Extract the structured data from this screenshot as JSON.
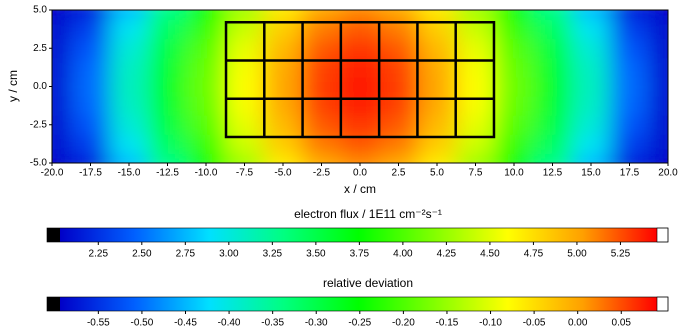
{
  "chart_data": {
    "type": "contour",
    "xlabel": "x / cm",
    "ylabel": "y / cm",
    "x": [
      -20,
      -17.5,
      -15,
      -12.5,
      -10,
      -7.5,
      -5,
      -2.5,
      0,
      2.5,
      5,
      7.5,
      10,
      12.5,
      15,
      17.5,
      20
    ],
    "y": [
      -5,
      -3.75,
      -2.5,
      -1.25,
      0,
      1.25,
      2.5,
      3.75,
      5
    ],
    "z": [
      [
        2.05,
        2.2,
        2.8,
        3.3,
        3.8,
        4.3,
        4.7,
        5.0,
        5.1,
        5.0,
        4.7,
        4.3,
        3.8,
        3.3,
        2.8,
        2.2,
        2.05
      ],
      [
        2.07,
        2.33,
        2.93,
        3.43,
        3.93,
        4.43,
        4.83,
        5.13,
        5.23,
        5.13,
        4.83,
        4.43,
        3.93,
        3.43,
        2.93,
        2.33,
        2.07
      ],
      [
        2.08,
        2.42,
        3.02,
        3.52,
        4.02,
        4.52,
        4.92,
        5.22,
        5.32,
        5.22,
        4.92,
        4.52,
        4.02,
        3.52,
        3.02,
        2.42,
        2.08
      ],
      [
        2.09,
        2.48,
        3.08,
        3.58,
        4.08,
        4.58,
        4.98,
        5.28,
        5.38,
        5.28,
        4.98,
        4.58,
        4.08,
        3.58,
        3.08,
        2.48,
        2.09
      ],
      [
        2.1,
        2.5,
        3.1,
        3.6,
        4.1,
        4.6,
        5.0,
        5.3,
        5.4,
        5.3,
        5.0,
        4.6,
        4.1,
        3.6,
        3.1,
        2.5,
        2.1
      ],
      [
        2.09,
        2.48,
        3.08,
        3.58,
        4.08,
        4.58,
        4.98,
        5.28,
        5.38,
        5.28,
        4.98,
        4.58,
        4.08,
        3.58,
        3.08,
        2.48,
        2.09
      ],
      [
        2.08,
        2.42,
        3.02,
        3.52,
        4.02,
        4.52,
        4.92,
        5.22,
        5.32,
        5.22,
        4.92,
        4.52,
        4.02,
        3.52,
        3.02,
        2.42,
        2.08
      ],
      [
        2.07,
        2.33,
        2.93,
        3.43,
        3.93,
        4.43,
        4.83,
        5.13,
        5.23,
        5.13,
        4.83,
        4.43,
        3.93,
        3.43,
        2.93,
        2.33,
        2.07
      ],
      [
        2.05,
        2.2,
        2.8,
        3.3,
        3.8,
        4.3,
        4.7,
        5.0,
        5.1,
        5.0,
        4.7,
        4.3,
        3.8,
        3.3,
        2.8,
        2.2,
        2.05
      ]
    ],
    "xlim": [
      -20,
      20
    ],
    "ylim": [
      -5,
      5
    ],
    "xticks": [
      {
        "value": -20,
        "label": "-20.0"
      },
      -17.5,
      {
        "value": -15,
        "label": "-15.0"
      },
      -12.5,
      {
        "value": -10,
        "label": "-10.0"
      },
      -7.5,
      {
        "value": -5,
        "label": "-5.0"
      },
      -2.5,
      {
        "value": 0,
        "label": "0.0"
      },
      2.5,
      {
        "value": 5,
        "label": "5.0"
      },
      7.5,
      {
        "value": 10,
        "label": "10.0"
      },
      12.5,
      {
        "value": 15,
        "label": "15.0"
      },
      17.5,
      {
        "value": 20,
        "label": "20.0"
      }
    ],
    "yticks": [
      {
        "value": -5,
        "label": "-5.0"
      },
      -2.5,
      {
        "value": 0,
        "label": "0.0"
      },
      2.5,
      {
        "value": 5,
        "label": "5.0"
      }
    ],
    "colormap": [
      "#0000c8",
      "#0060ff",
      "#00e0ff",
      "#00ff80",
      "#00ff00",
      "#80ff00",
      "#ffff00",
      "#ffa000",
      "#ff0000"
    ],
    "under_color": "#000000",
    "over_color": "#ffffff",
    "boxes": {
      "x": [
        -8.7,
        8.7
      ],
      "y": [
        -3.3,
        4.2
      ],
      "columns": 7,
      "rows": 3,
      "color": "#000000"
    },
    "colorbars": [
      {
        "label": "electron flux / 1E11 cm⁻²s⁻¹",
        "clim": [
          2.03,
          5.46
        ],
        "ticks": [
          2.25,
          {
            "value": 2.5,
            "label": "2.50"
          },
          2.75,
          {
            "value": 3,
            "label": "3.00"
          },
          3.25,
          {
            "value": 3.5,
            "label": "3.50"
          },
          3.75,
          {
            "value": 4,
            "label": "4.00"
          },
          4.25,
          {
            "value": 4.5,
            "label": "4.50"
          },
          4.75,
          {
            "value": 5,
            "label": "5.00"
          },
          5.25
        ]
      },
      {
        "label": "relative deviation",
        "clim": [
          -0.594,
          0.091
        ],
        "ticks": [
          -0.55,
          {
            "value": -0.5,
            "label": "-0.50"
          },
          -0.45,
          {
            "value": -0.4,
            "label": "-0.40"
          },
          -0.35,
          {
            "value": -0.3,
            "label": "-0.30"
          },
          -0.25,
          {
            "value": -0.2,
            "label": "-0.20"
          },
          -0.15,
          {
            "value": -0.1,
            "label": "-0.10"
          },
          -0.05,
          {
            "value": 0,
            "label": "0.00"
          },
          0.05
        ]
      }
    ]
  }
}
